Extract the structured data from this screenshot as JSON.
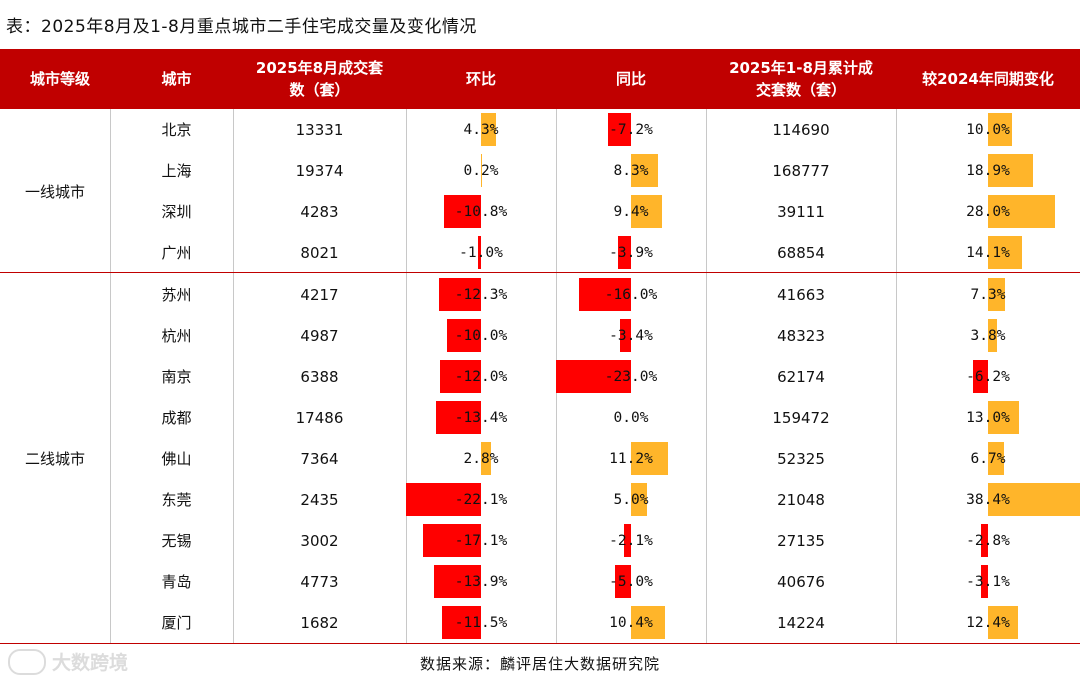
{
  "title": "表：2025年8月及1-8月重点城市二手住宅成交量及变化情况",
  "headers": {
    "tier": "城市等级",
    "city": "城市",
    "aug_vol_1": "2025年8月成交套",
    "aug_vol_2": "数（套）",
    "mom": "环比",
    "yoy": "同比",
    "cum_vol_1": "2025年1-8月累计成",
    "cum_vol_2": "交套数（套）",
    "vs2024": "较2024年同期变化"
  },
  "tiers": [
    "一线城市",
    "二线城市"
  ],
  "rows": [
    {
      "city": "北京",
      "aug": "13331",
      "mom": "4.3%",
      "yoy": "-7.2%",
      "cum": "114690",
      "chg": "10.0%",
      "mom_v": 4.3,
      "yoy_v": -7.2,
      "chg_v": 10.0
    },
    {
      "city": "上海",
      "aug": "19374",
      "mom": "0.2%",
      "yoy": "8.3%",
      "cum": "168777",
      "chg": "18.9%",
      "mom_v": 0.2,
      "yoy_v": 8.3,
      "chg_v": 18.9
    },
    {
      "city": "深圳",
      "aug": "4283",
      "mom": "-10.8%",
      "yoy": "9.4%",
      "cum": "39111",
      "chg": "28.0%",
      "mom_v": -10.8,
      "yoy_v": 9.4,
      "chg_v": 28.0
    },
    {
      "city": "广州",
      "aug": "8021",
      "mom": "-1.0%",
      "yoy": "-3.9%",
      "cum": "68854",
      "chg": "14.1%",
      "mom_v": -1.0,
      "yoy_v": -3.9,
      "chg_v": 14.1
    },
    {
      "city": "苏州",
      "aug": "4217",
      "mom": "-12.3%",
      "yoy": "-16.0%",
      "cum": "41663",
      "chg": "7.3%",
      "mom_v": -12.3,
      "yoy_v": -16.0,
      "chg_v": 7.3
    },
    {
      "city": "杭州",
      "aug": "4987",
      "mom": "-10.0%",
      "yoy": "-3.4%",
      "cum": "48323",
      "chg": "3.8%",
      "mom_v": -10.0,
      "yoy_v": -3.4,
      "chg_v": 3.8
    },
    {
      "city": "南京",
      "aug": "6388",
      "mom": "-12.0%",
      "yoy": "-23.0%",
      "cum": "62174",
      "chg": "-6.2%",
      "mom_v": -12.0,
      "yoy_v": -23.0,
      "chg_v": -6.2
    },
    {
      "city": "成都",
      "aug": "17486",
      "mom": "-13.4%",
      "yoy": "0.0%",
      "cum": "159472",
      "chg": "13.0%",
      "mom_v": -13.4,
      "yoy_v": 0.0,
      "chg_v": 13.0
    },
    {
      "city": "佛山",
      "aug": "7364",
      "mom": "2.8%",
      "yoy": "11.2%",
      "cum": "52325",
      "chg": "6.7%",
      "mom_v": 2.8,
      "yoy_v": 11.2,
      "chg_v": 6.7
    },
    {
      "city": "东莞",
      "aug": "2435",
      "mom": "-22.1%",
      "yoy": "5.0%",
      "cum": "21048",
      "chg": "38.4%",
      "mom_v": -22.1,
      "yoy_v": 5.0,
      "chg_v": 38.4
    },
    {
      "city": "无锡",
      "aug": "3002",
      "mom": "-17.1%",
      "yoy": "-2.1%",
      "cum": "27135",
      "chg": "-2.8%",
      "mom_v": -17.1,
      "yoy_v": -2.1,
      "chg_v": -2.8
    },
    {
      "city": "青岛",
      "aug": "4773",
      "mom": "-13.9%",
      "yoy": "-5.0%",
      "cum": "40676",
      "chg": "-3.1%",
      "mom_v": -13.9,
      "yoy_v": -5.0,
      "chg_v": -3.1
    },
    {
      "city": "厦门",
      "aug": "1682",
      "mom": "-11.5%",
      "yoy": "10.4%",
      "cum": "14224",
      "chg": "12.4%",
      "mom_v": -11.5,
      "yoy_v": 10.4,
      "chg_v": 12.4
    }
  ],
  "colors": {
    "header_bg": "#c00000",
    "positive_bar": "#ffb52a",
    "negative_bar": "#ff0000"
  },
  "source": "数据来源：麟评居住大数据研究院",
  "watermark": "大数跨境"
}
